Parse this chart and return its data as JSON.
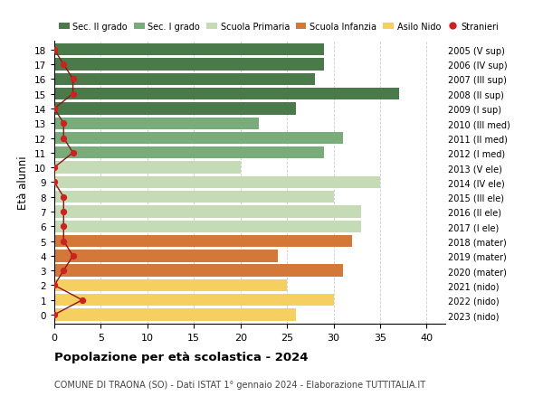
{
  "ages": [
    18,
    17,
    16,
    15,
    14,
    13,
    12,
    11,
    10,
    9,
    8,
    7,
    6,
    5,
    4,
    3,
    2,
    1,
    0
  ],
  "bar_values": [
    29,
    29,
    28,
    37,
    26,
    22,
    31,
    29,
    20,
    35,
    30,
    33,
    33,
    32,
    24,
    31,
    25,
    30,
    26
  ],
  "stranieri_values": [
    0,
    1,
    2,
    2,
    0,
    1,
    1,
    2,
    0,
    0,
    1,
    1,
    1,
    1,
    2,
    1,
    0,
    3,
    0
  ],
  "right_labels_ordered": [
    "2005 (V sup)",
    "2006 (IV sup)",
    "2007 (III sup)",
    "2008 (II sup)",
    "2009 (I sup)",
    "2010 (III med)",
    "2011 (II med)",
    "2012 (I med)",
    "2013 (V ele)",
    "2014 (IV ele)",
    "2015 (III ele)",
    "2016 (II ele)",
    "2017 (I ele)",
    "2018 (mater)",
    "2019 (mater)",
    "2020 (mater)",
    "2021 (nido)",
    "2022 (nido)",
    "2023 (nido)"
  ],
  "bar_colors": [
    "#4a7a4a",
    "#4a7a4a",
    "#4a7a4a",
    "#4a7a4a",
    "#4a7a4a",
    "#7aab7a",
    "#7aab7a",
    "#7aab7a",
    "#c5dbb5",
    "#c5dbb5",
    "#c5dbb5",
    "#c5dbb5",
    "#c5dbb5",
    "#d4783a",
    "#d4783a",
    "#d4783a",
    "#f5d060",
    "#f5d060",
    "#f5d060"
  ],
  "legend_labels": [
    "Sec. II grado",
    "Sec. I grado",
    "Scuola Primaria",
    "Scuola Infanzia",
    "Asilo Nido",
    "Stranieri"
  ],
  "legend_colors": [
    "#4a7a4a",
    "#7aab7a",
    "#c5dbb5",
    "#d4783a",
    "#f5d060",
    "#cc2222"
  ],
  "title": "Popolazione per età scolastica - 2024",
  "subtitle": "COMUNE DI TRAONA (SO) - Dati ISTAT 1° gennaio 2024 - Elaborazione TUTTITALIA.IT",
  "ylabel": "Età alunni",
  "xlim": [
    0,
    42
  ],
  "background_color": "#ffffff",
  "grid_color": "#cccccc",
  "stranieri_color": "#cc2222",
  "stranieri_line_color": "#8b1515"
}
